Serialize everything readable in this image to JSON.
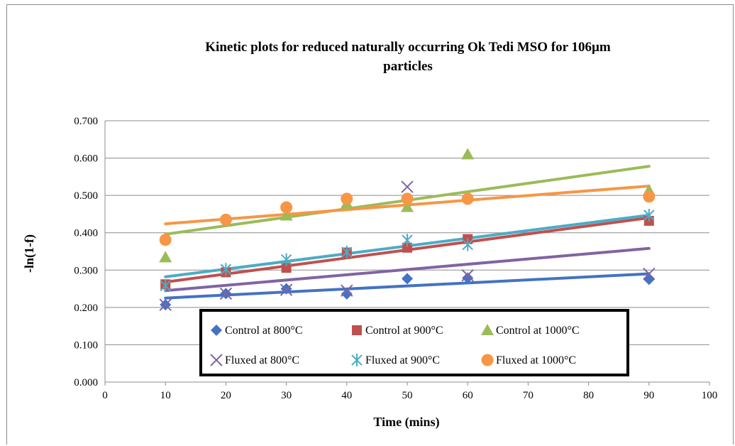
{
  "chart_data": {
    "type": "scatter",
    "title": "Kinetic plots for reduced naturally occurring Ok Tedi MSO for  106µm particles",
    "title_lines": [
      "Kinetic plots for reduced naturally occurring Ok Tedi MSO for  106µm",
      "particles"
    ],
    "xlabel": "Time (mins)",
    "ylabel": "-ln(1-f)",
    "xlim": [
      0,
      100
    ],
    "ylim": [
      0,
      0.7
    ],
    "xticks": [
      "0",
      "10",
      "20",
      "30",
      "40",
      "50",
      "60",
      "70",
      "80",
      "90",
      "100"
    ],
    "yticks": [
      "0.000",
      "0.100",
      "0.200",
      "0.300",
      "0.400",
      "0.500",
      "0.600",
      "0.700"
    ],
    "grid": "horizontal",
    "legend_position": "bottom-center",
    "series": [
      {
        "name": "Control at 800°C",
        "marker": "diamond",
        "color": "#4472c4",
        "x": [
          10,
          20,
          30,
          40,
          50,
          60,
          90
        ],
        "y": [
          0.207,
          0.237,
          0.25,
          0.236,
          0.277,
          0.279,
          0.275
        ],
        "trend": [
          [
            10,
            0.225
          ],
          [
            90,
            0.29
          ]
        ]
      },
      {
        "name": "Control at 900°C",
        "marker": "square",
        "color": "#c0504d",
        "x": [
          10,
          20,
          30,
          40,
          50,
          60,
          90
        ],
        "y": [
          0.262,
          0.294,
          0.306,
          0.347,
          0.36,
          0.383,
          0.432
        ],
        "trend": [
          [
            10,
            0.268
          ],
          [
            90,
            0.44
          ]
        ]
      },
      {
        "name": "Control at 1000°C",
        "marker": "triangle",
        "color": "#9bbb59",
        "x": [
          10,
          30,
          40,
          50,
          60,
          90
        ],
        "y": [
          0.334,
          0.446,
          0.478,
          0.469,
          0.61,
          0.513
        ],
        "trend": [
          [
            10,
            0.396
          ],
          [
            90,
            0.578
          ]
        ]
      },
      {
        "name": "Fluxed at 800°C",
        "marker": "x",
        "color": "#8064a2",
        "x": [
          10,
          20,
          30,
          40,
          50,
          60,
          90
        ],
        "y": [
          0.207,
          0.237,
          0.247,
          0.245,
          0.523,
          0.286,
          0.29
        ],
        "trend": [
          [
            10,
            0.245
          ],
          [
            90,
            0.358
          ]
        ]
      },
      {
        "name": "Fluxed at 900°C",
        "marker": "star",
        "color": "#4bacc6",
        "x": [
          10,
          20,
          30,
          40,
          50,
          60,
          90
        ],
        "y": [
          0.258,
          0.302,
          0.328,
          0.348,
          0.38,
          0.368,
          0.447
        ],
        "trend": [
          [
            10,
            0.282
          ],
          [
            90,
            0.447
          ]
        ]
      },
      {
        "name": "Fluxed at 1000°C",
        "marker": "circle",
        "color": "#f79646",
        "x": [
          10,
          20,
          30,
          40,
          50,
          60,
          90
        ],
        "y": [
          0.381,
          0.435,
          0.468,
          0.491,
          0.491,
          0.491,
          0.497
        ],
        "trend": [
          [
            10,
            0.424
          ],
          [
            90,
            0.525
          ]
        ]
      }
    ]
  }
}
